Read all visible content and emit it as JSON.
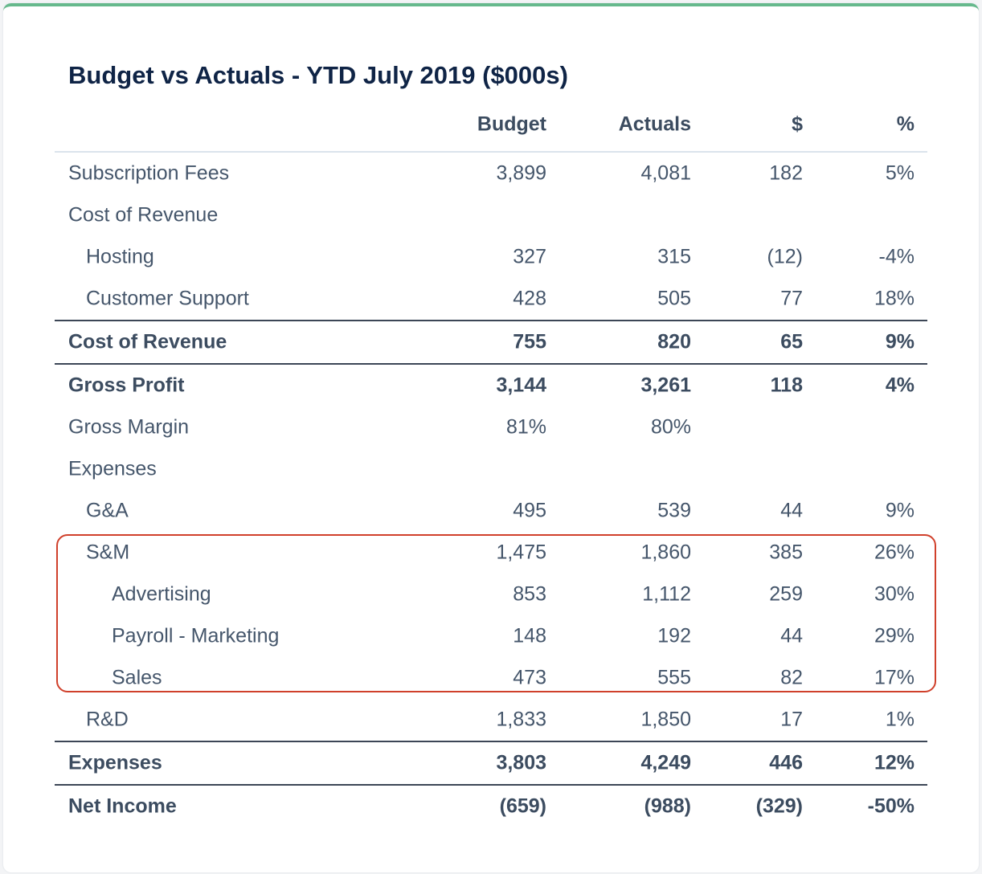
{
  "title": "Budget vs Actuals - YTD July 2019 ($000s)",
  "columns": [
    "Budget",
    "Actuals",
    "$",
    "%"
  ],
  "rows": [
    {
      "label": "Subscription Fees",
      "indent": 0,
      "bold": false,
      "values": [
        "3,899",
        "4,081",
        "182",
        "5%"
      ]
    },
    {
      "label": "Cost of Revenue",
      "indent": 0,
      "bold": false,
      "values": [
        "",
        "",
        "",
        ""
      ]
    },
    {
      "label": "Hosting",
      "indent": 1,
      "bold": false,
      "values": [
        "327",
        "315",
        "(12)",
        "-4%"
      ]
    },
    {
      "label": "Customer Support",
      "indent": 1,
      "bold": false,
      "values": [
        "428",
        "505",
        "77",
        "18%"
      ]
    },
    {
      "label": "Cost of Revenue",
      "indent": 0,
      "bold": true,
      "values": [
        "755",
        "820",
        "65",
        "9%"
      ]
    },
    {
      "label": "Gross Profit",
      "indent": 0,
      "bold": true,
      "values": [
        "3,144",
        "3,261",
        "118",
        "4%"
      ]
    },
    {
      "label": "Gross Margin",
      "indent": 0,
      "bold": false,
      "values": [
        "81%",
        "80%",
        "",
        ""
      ]
    },
    {
      "label": "Expenses",
      "indent": 0,
      "bold": false,
      "values": [
        "",
        "",
        "",
        ""
      ]
    },
    {
      "label": "G&A",
      "indent": 1,
      "bold": false,
      "values": [
        "495",
        "539",
        "44",
        "9%"
      ]
    },
    {
      "label": "S&M",
      "indent": 1,
      "bold": false,
      "values": [
        "1,475",
        "1,860",
        "385",
        "26%"
      ]
    },
    {
      "label": "Advertising",
      "indent": 2,
      "bold": false,
      "values": [
        "853",
        "1,112",
        "259",
        "30%"
      ]
    },
    {
      "label": "Payroll - Marketing",
      "indent": 2,
      "bold": false,
      "values": [
        "148",
        "192",
        "44",
        "29%"
      ]
    },
    {
      "label": "Sales",
      "indent": 2,
      "bold": false,
      "values": [
        "473",
        "555",
        "82",
        "17%"
      ]
    },
    {
      "label": "R&D",
      "indent": 1,
      "bold": false,
      "values": [
        "1,833",
        "1,850",
        "17",
        "1%"
      ]
    },
    {
      "label": "Expenses",
      "indent": 0,
      "bold": true,
      "values": [
        "3,803",
        "4,249",
        "446",
        "12%"
      ]
    },
    {
      "label": "Net Income",
      "indent": 0,
      "bold": true,
      "values": [
        "(659)",
        "(988)",
        "(329)",
        "-50%"
      ]
    }
  ],
  "highlight_color": "#d0402b",
  "accent_color": "#66b98c"
}
